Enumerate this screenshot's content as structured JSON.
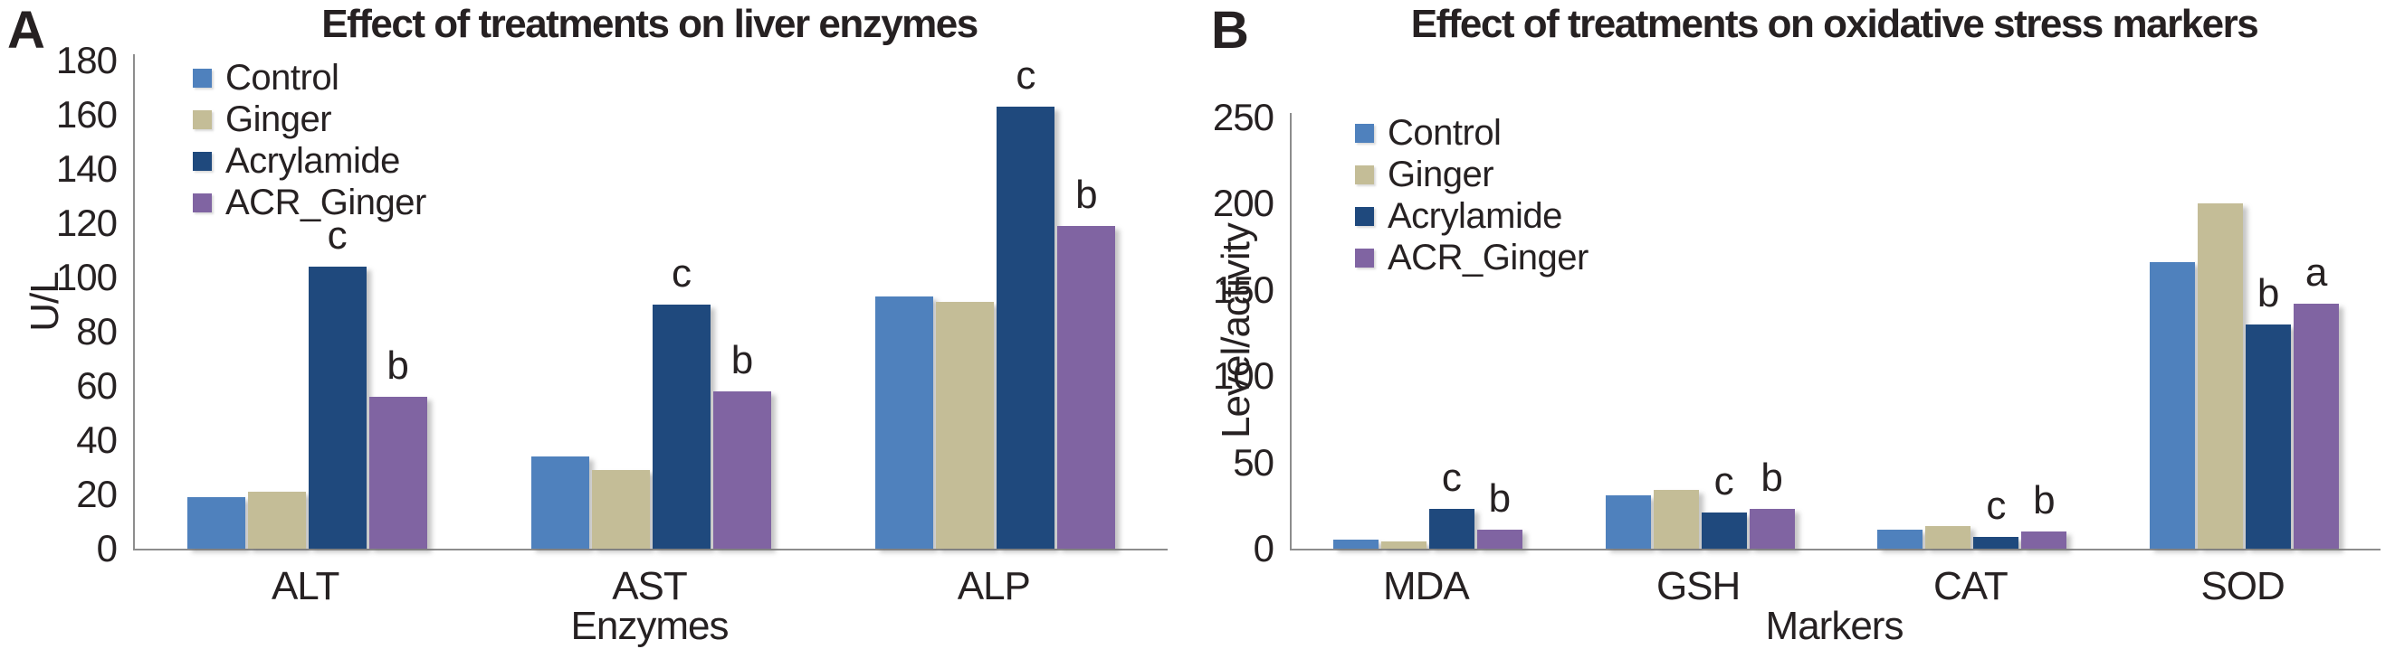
{
  "colors": {
    "axis": "#8D8D8D",
    "text": "#262122",
    "control": "#4F81BD",
    "ginger": "#C4BD97",
    "acrylamide": "#1F497D",
    "acr_ginger": "#8064A2"
  },
  "chart_data": [
    {
      "panel": "A",
      "type": "bar",
      "title": "Effect of treatments on liver enzymes",
      "xlabel": "Enzymes",
      "ylabel": "U/L",
      "ylim": [
        0,
        180
      ],
      "yticks": [
        0,
        20,
        40,
        60,
        80,
        100,
        120,
        140,
        160,
        180
      ],
      "grid": false,
      "legend_position": "upper-left-inside",
      "categories": [
        "ALT",
        "AST",
        "ALP"
      ],
      "series": [
        {
          "name": "Control",
          "color": "#4F81BD",
          "values": [
            19,
            34,
            93
          ]
        },
        {
          "name": "Ginger",
          "color": "#C4BD97",
          "values": [
            21,
            29,
            91
          ]
        },
        {
          "name": "Acrylamide",
          "color": "#1F497D",
          "values": [
            104,
            90,
            163
          ]
        },
        {
          "name": "ACR_Ginger",
          "color": "#8064A2",
          "values": [
            56,
            58,
            119
          ]
        }
      ],
      "bar_labels": [
        [
          "",
          "",
          ""
        ],
        [
          "",
          "",
          ""
        ],
        [
          "c",
          "c",
          "c"
        ],
        [
          "b",
          "b",
          "b"
        ]
      ]
    },
    {
      "panel": "B",
      "type": "bar",
      "title": "Effect of treatments on oxidative stress markers",
      "xlabel": "Markers",
      "ylabel": "Level/activity",
      "ylim": [
        0,
        250
      ],
      "yticks": [
        0,
        50,
        100,
        150,
        200,
        250
      ],
      "grid": false,
      "legend_position": "upper-left-inside",
      "categories": [
        "MDA",
        "GSH",
        "CAT",
        "SOD"
      ],
      "series": [
        {
          "name": "Control",
          "color": "#4F81BD",
          "values": [
            5,
            31,
            11,
            166
          ]
        },
        {
          "name": "Ginger",
          "color": "#C4BD97",
          "values": [
            4,
            34,
            13,
            200
          ]
        },
        {
          "name": "Acrylamide",
          "color": "#1F497D",
          "values": [
            23,
            21,
            7,
            130
          ]
        },
        {
          "name": "ACR_Ginger",
          "color": "#8064A2",
          "values": [
            11,
            23,
            10,
            142
          ]
        }
      ],
      "bar_labels": [
        [
          "",
          "",
          "",
          ""
        ],
        [
          "",
          "",
          "",
          ""
        ],
        [
          "c",
          "c",
          "c",
          "b"
        ],
        [
          "b",
          "b",
          "b",
          "a"
        ]
      ]
    }
  ]
}
